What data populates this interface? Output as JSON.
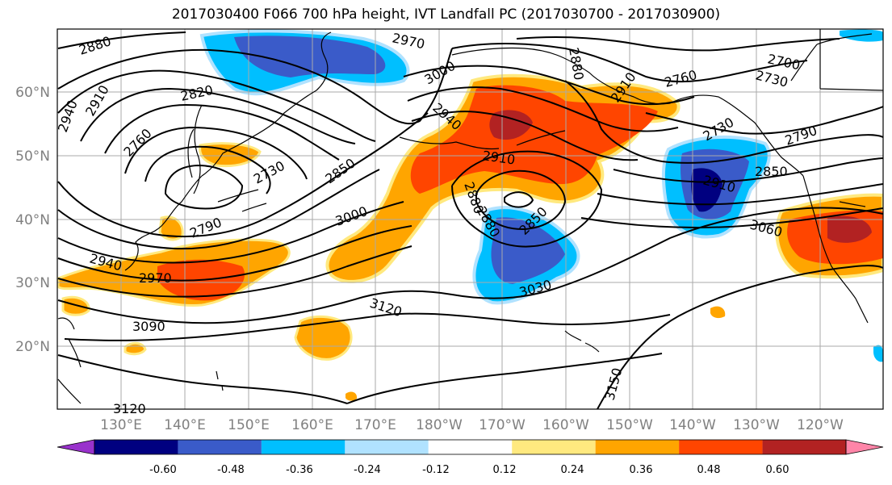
{
  "title": "2017030400 F066 700 hPa height, IVT Landfall PC (2017030700 - 2017030900)",
  "lat_labels": [
    "60°N",
    "50°N",
    "40°N",
    "30°N",
    "20°N"
  ],
  "lon_labels": [
    "130°E",
    "140°E",
    "150°E",
    "160°E",
    "170°E",
    "180°W",
    "170°W",
    "160°W",
    "150°W",
    "140°W",
    "130°W",
    "120°W"
  ],
  "contour_labels": [
    "2880",
    "2970",
    "2880",
    "2700",
    "2730",
    "3000",
    "2940",
    "2910",
    "2880",
    "2820",
    "2760",
    "2940",
    "2910",
    "2760",
    "2790",
    "2730",
    "2730",
    "2850",
    "2910",
    "2850",
    "2910",
    "2880",
    "3000",
    "2850",
    "3060",
    "2790",
    "2940",
    "2970",
    "3030",
    "3120",
    "3090",
    "3150",
    "3120"
  ],
  "colorbar": {
    "colors": [
      "#9932CC",
      "#000080",
      "#3A5BC9",
      "#00BFFF",
      "#B0E2FF",
      "#FFFFFF",
      "#FFE97F",
      "#FFA500",
      "#FF4500",
      "#B22222",
      "#FF85A8"
    ],
    "tick_labels": [
      "-0.60",
      "-0.48",
      "-0.36",
      "-0.24",
      "-0.12",
      "0.12",
      "0.24",
      "0.36",
      "0.48",
      "0.60"
    ]
  }
}
